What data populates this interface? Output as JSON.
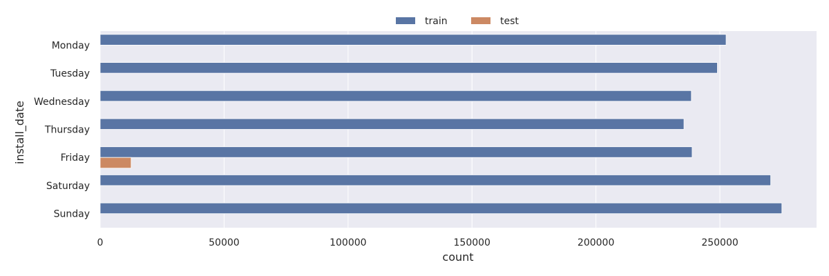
{
  "chart_data": {
    "type": "bar",
    "orientation": "horizontal",
    "categories": [
      "Monday",
      "Tuesday",
      "Wednesday",
      "Thursday",
      "Friday",
      "Saturday",
      "Sunday"
    ],
    "series": [
      {
        "name": "train",
        "values": [
          252500,
          249000,
          238500,
          235500,
          238800,
          270500,
          275000
        ]
      },
      {
        "name": "test",
        "values": [
          0,
          0,
          0,
          0,
          12500,
          0,
          0
        ]
      }
    ],
    "xlabel": "count",
    "ylabel": "install_date",
    "xlim": [
      0,
      289000
    ],
    "xticks": [
      0,
      50000,
      100000,
      150000,
      200000,
      250000
    ],
    "grid": true,
    "legend": "top-center",
    "colors": {
      "train": "#5975a4",
      "test": "#cc8963",
      "background": "#eaeaf2",
      "grid": "#ffffff"
    }
  }
}
